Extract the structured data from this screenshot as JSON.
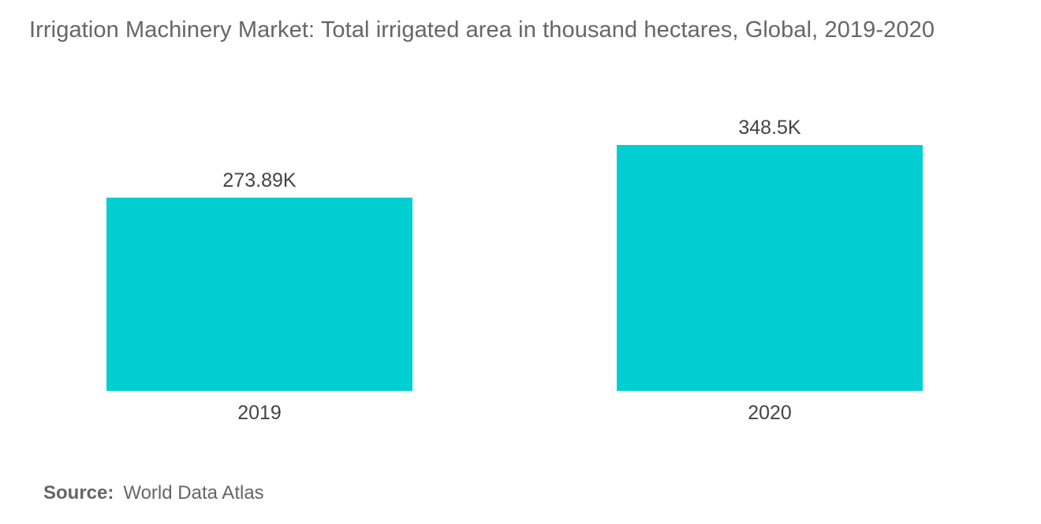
{
  "chart_data": {
    "type": "bar",
    "title": "Irrigation Machinery Market: Total irrigated area in thousand hectares, Global, 2019-2020",
    "categories": [
      "2019",
      "2020"
    ],
    "values": [
      273.89,
      348.5
    ],
    "data_labels": [
      "273.89K",
      "348.5K"
    ],
    "xlabel": "",
    "ylabel": "",
    "ylim": [
      0,
      348.5
    ],
    "grid": false,
    "legend": "none",
    "bar_color": "#00CED1"
  },
  "source": {
    "label": "Source:",
    "text": "World Data Atlas"
  }
}
